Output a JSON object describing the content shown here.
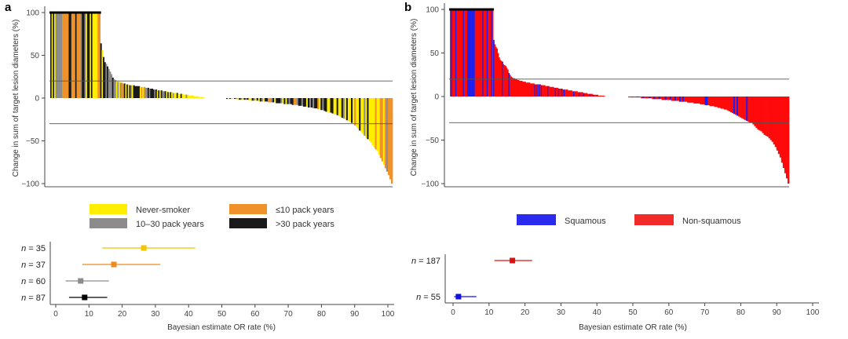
{
  "figure": {
    "panels": [
      "a",
      "b"
    ]
  },
  "chart_data": [
    {
      "id": "a-waterfall",
      "panel": "a",
      "type": "bar",
      "subtype": "waterfall",
      "title": "",
      "xlabel": "",
      "ylabel": "Change in sum of target lesion diameters (%)",
      "ylim": [
        -100,
        100
      ],
      "yticks": [
        100,
        50,
        0,
        -50,
        -100
      ],
      "reference_lines": [
        20,
        -30
      ],
      "capped_at": 100,
      "legend": [
        {
          "key": "never",
          "label": "Never-smoker",
          "color": "#ffee00"
        },
        {
          "key": "le10",
          "label": "≤10 pack years",
          "color": "#f0922a"
        },
        {
          "key": "mid",
          "label": "10–30 pack years",
          "color": "#8c8c8c"
        },
        {
          "key": "gt30",
          "label": ">30 pack years",
          "color": "#1a1a1a"
        }
      ],
      "legend_placement": "bottom",
      "colors": {
        "never": "#ffee00",
        "le10": "#f0922a",
        "mid": "#8c8c8c",
        "gt30": "#1a1a1a",
        "capped_bar": "#c98a4a"
      },
      "positive_bars": {
        "values": [
          100,
          100,
          100,
          100,
          100,
          100,
          100,
          100,
          100,
          100,
          100,
          100,
          100,
          100,
          100,
          100,
          100,
          100,
          100,
          100,
          100,
          100,
          100,
          100,
          100,
          100,
          100,
          100,
          100,
          100,
          100,
          100,
          100,
          100,
          100,
          100,
          100,
          100,
          64,
          56,
          48,
          42,
          40,
          37,
          34,
          31,
          28,
          24,
          22,
          21,
          20,
          19,
          19,
          18,
          18,
          17,
          17,
          16,
          16,
          16,
          15,
          15,
          15,
          15,
          14,
          14,
          14,
          14,
          13,
          13,
          13,
          13,
          12,
          12,
          12,
          11,
          11,
          11,
          10,
          10,
          10,
          9,
          9,
          9,
          9,
          8,
          8,
          8,
          8,
          7,
          7,
          7,
          7,
          6,
          6,
          6,
          6,
          5,
          5,
          5,
          5,
          4,
          4,
          4,
          4,
          3,
          3,
          3,
          3,
          2,
          2,
          2,
          2,
          1,
          1,
          1,
          1
        ],
        "groups": [
          "gt30",
          "never",
          "gt30",
          "never",
          "mid",
          "mid",
          "mid",
          "mid",
          "mid",
          "le10",
          "le10",
          "le10",
          "le10",
          "le10",
          "gt30",
          "gt30",
          "le10",
          "le10",
          "le10",
          "gt30",
          "le10",
          "le10",
          "le10",
          "mid",
          "gt30",
          "gt30",
          "mid",
          "never",
          "gt30",
          "gt30",
          "never",
          "gt30",
          "never",
          "never",
          "never",
          "never",
          "le10",
          "le10",
          "gt30",
          "never",
          "gt30",
          "gt30",
          "mid",
          "gt30",
          "mid",
          "mid",
          "mid",
          "gt30",
          "mid",
          "mid",
          "never",
          "mid",
          "never",
          "mid",
          "le10",
          "le10",
          "gt30",
          "never",
          "gt30",
          "never",
          "gt30",
          "mid",
          "never",
          "gt30",
          "gt30",
          "gt30",
          "gt30",
          "gt30",
          "never",
          "le10",
          "never",
          "le10",
          "mid",
          "mid",
          "gt30",
          "mid",
          "gt30",
          "gt30",
          "gt30",
          "mid",
          "gt30",
          "never",
          "gt30",
          "never",
          "gt30",
          "mid",
          "mid",
          "gt30",
          "never",
          "gt30",
          "never",
          "gt30",
          "never",
          "mid",
          "never",
          "never",
          "gt30",
          "never",
          "never",
          "gt30",
          "never",
          "never",
          "never",
          "mid",
          "never",
          "never",
          "never",
          "never",
          "never",
          "never",
          "never",
          "never",
          "never",
          "never",
          "never",
          "never",
          "never"
        ]
      },
      "negative_bars": {
        "values": [
          -1,
          -1,
          -1,
          -1,
          -1,
          -1,
          -1,
          -2,
          -2,
          -2,
          -2,
          -2,
          -2,
          -2,
          -3,
          -3,
          -3,
          -3,
          -3,
          -3,
          -4,
          -4,
          -4,
          -4,
          -4,
          -4,
          -5,
          -5,
          -5,
          -5,
          -5,
          -6,
          -6,
          -6,
          -6,
          -6,
          -7,
          -7,
          -7,
          -7,
          -7,
          -8,
          -8,
          -8,
          -8,
          -9,
          -9,
          -9,
          -10,
          -10,
          -10,
          -11,
          -11,
          -11,
          -12,
          -12,
          -12,
          -13,
          -13,
          -14,
          -14,
          -15,
          -16,
          -16,
          -17,
          -17,
          -18,
          -19,
          -19,
          -20,
          -21,
          -22,
          -23,
          -24,
          -25,
          -26,
          -27,
          -28,
          -29,
          -30,
          -32,
          -34,
          -36,
          -38,
          -40,
          -42,
          -44,
          -46,
          -48,
          -50,
          -52,
          -55,
          -58,
          -60,
          -62,
          -66,
          -70,
          -74,
          -78,
          -82,
          -86,
          -90,
          -95,
          -100
        ],
        "groups": [
          "gt30",
          "never",
          "gt30",
          "never",
          "never",
          "gt30",
          "mid",
          "never",
          "gt30",
          "mid",
          "never",
          "gt30",
          "mid",
          "gt30",
          "never",
          "never",
          "gt30",
          "mid",
          "never",
          "gt30",
          "never",
          "gt30",
          "mid",
          "never",
          "gt30",
          "gt30",
          "le10",
          "le10",
          "mid",
          "gt30",
          "never",
          "gt30",
          "gt30",
          "gt30",
          "mid",
          "never",
          "gt30",
          "never",
          "gt30",
          "mid",
          "gt30",
          "gt30",
          "le10",
          "le10",
          "mid",
          "gt30",
          "gt30",
          "mid",
          "gt30",
          "gt30",
          "never",
          "gt30",
          "mid",
          "gt30",
          "mid",
          "gt30",
          "gt30",
          "le10",
          "never",
          "gt30",
          "mid",
          "gt30",
          "gt30",
          "never",
          "never",
          "gt30",
          "gt30",
          "never",
          "never",
          "gt30",
          "never",
          "never",
          "gt30",
          "mid",
          "never",
          "gt30",
          "never",
          "never",
          "gt30",
          "never",
          "le10",
          "never",
          "never",
          "gt30",
          "never",
          "never",
          "mid",
          "never",
          "gt30",
          "never",
          "never",
          "never",
          "never",
          "le10",
          "never",
          "never",
          "le10",
          "le10",
          "never",
          "le10",
          "mid",
          "le10",
          "le10",
          "le10"
        ]
      }
    },
    {
      "id": "a-forest",
      "panel": "a",
      "type": "scatter",
      "subtype": "forest",
      "xlabel": "Bayesian estimate OR rate (%)",
      "ylabel": "",
      "xlim": [
        0,
        100
      ],
      "xticks": [
        0,
        10,
        20,
        30,
        40,
        50,
        60,
        70,
        80,
        90,
        100
      ],
      "rows": [
        {
          "label_prefix": "n",
          "label_value": " = 35",
          "estimate": 26.5,
          "lower": 14,
          "upper": 42,
          "color": "#f5c400"
        },
        {
          "label_prefix": "n",
          "label_value": " = 37",
          "estimate": 17.5,
          "lower": 8,
          "upper": 31.5,
          "color": "#f08a1c"
        },
        {
          "label_prefix": "n",
          "label_value": " = 60",
          "estimate": 7.5,
          "lower": 3,
          "upper": 16,
          "color": "#8c8c8c"
        },
        {
          "label_prefix": "n",
          "label_value": " = 87",
          "estimate": 8.7,
          "lower": 4,
          "upper": 15.5,
          "color": "#000000"
        }
      ]
    },
    {
      "id": "b-waterfall",
      "panel": "b",
      "type": "bar",
      "subtype": "waterfall",
      "title": "",
      "xlabel": "",
      "ylabel": "Change in sum of target lesion diameters (%)",
      "ylim": [
        -100,
        100
      ],
      "yticks": [
        100,
        50,
        0,
        -50,
        -100
      ],
      "reference_lines": [
        20,
        -30
      ],
      "capped_at": 100,
      "legend": [
        {
          "key": "sq",
          "label": "Squamous",
          "color": "#2b2bf0"
        },
        {
          "key": "nsq",
          "label": "Non-squamous",
          "color": "#f22a2a"
        }
      ],
      "legend_placement": "bottom",
      "colors": {
        "sq": "#2020ee",
        "nsq": "#ff0a0a"
      },
      "positive_bars": {
        "values": [
          100,
          100,
          100,
          100,
          100,
          100,
          100,
          100,
          100,
          100,
          100,
          100,
          100,
          100,
          100,
          100,
          100,
          100,
          100,
          100,
          100,
          100,
          100,
          100,
          100,
          100,
          100,
          100,
          100,
          100,
          100,
          100,
          100,
          100,
          100,
          100,
          100,
          100,
          100,
          100,
          65,
          60,
          57,
          55,
          50,
          45,
          42,
          41,
          40,
          37,
          36,
          35,
          33,
          31,
          27,
          25,
          23,
          22,
          21,
          21,
          20,
          20,
          19,
          19,
          18,
          18,
          18,
          17,
          17,
          17,
          16,
          16,
          16,
          16,
          15,
          15,
          15,
          15,
          14,
          14,
          14,
          14,
          14,
          14,
          13,
          13,
          13,
          13,
          12,
          12,
          12,
          12,
          11,
          11,
          11,
          11,
          10,
          10,
          10,
          10,
          9,
          9,
          9,
          9,
          8,
          8,
          8,
          8,
          8,
          7,
          7,
          7,
          7,
          6,
          6,
          6,
          6,
          6,
          5,
          5,
          5,
          5,
          5,
          4,
          4,
          4,
          4,
          3,
          3,
          3,
          3,
          3,
          2,
          2,
          2,
          2,
          2,
          1,
          1,
          1,
          1,
          1,
          1
        ],
        "groups": [
          "nsq",
          "sq",
          "nsq",
          "nsq",
          "nsq",
          "sq",
          "nsq",
          "nsq",
          "nsq",
          "nsq",
          "nsq",
          "nsq",
          "sq",
          "nsq",
          "nsq",
          "nsq",
          "sq",
          "sq",
          "sq",
          "sq",
          "sq",
          "sq",
          "sq",
          "nsq",
          "nsq",
          "nsq",
          "nsq",
          "nsq",
          "nsq",
          "nsq",
          "sq",
          "nsq",
          "nsq",
          "nsq",
          "sq",
          "nsq",
          "nsq",
          "nsq",
          "sq",
          "nsq",
          "sq",
          "nsq",
          "nsq",
          "nsq",
          "nsq",
          "nsq",
          "nsq",
          "nsq",
          "sq",
          "nsq",
          "nsq",
          "nsq",
          "nsq",
          "nsq",
          "sq",
          "nsq",
          "nsq",
          "nsq",
          "nsq",
          "nsq",
          "nsq",
          "nsq",
          "nsq",
          "nsq",
          "nsq",
          "nsq",
          "nsq",
          "nsq",
          "nsq",
          "nsq",
          "nsq",
          "nsq",
          "nsq",
          "nsq",
          "nsq",
          "nsq",
          "nsq",
          "nsq",
          "sq",
          "nsq",
          "sq",
          "nsq",
          "sq",
          "nsq",
          "sq",
          "nsq",
          "nsq",
          "nsq",
          "nsq",
          "nsq",
          "sq",
          "nsq",
          "nsq",
          "nsq",
          "nsq",
          "nsq",
          "nsq",
          "sq",
          "nsq",
          "nsq",
          "sq",
          "nsq",
          "nsq",
          "sq",
          "nsq",
          "sq",
          "nsq",
          "nsq",
          "nsq",
          "nsq",
          "nsq",
          "nsq",
          "nsq",
          "nsq",
          "sq",
          "nsq",
          "nsq",
          "nsq",
          "nsq",
          "sq",
          "nsq",
          "nsq",
          "nsq",
          "sq",
          "nsq",
          "nsq",
          "nsq",
          "nsq",
          "nsq",
          "sq",
          "nsq",
          "nsq",
          "sq",
          "nsq",
          "nsq",
          "nsq",
          "nsq",
          "nsq",
          "nsq",
          "nsq",
          "nsq",
          "nsq",
          "nsq"
        ]
      },
      "negative_bars": {
        "values": [
          -1,
          -1,
          -1,
          -1,
          -1,
          -1,
          -1,
          -1,
          -2,
          -2,
          -2,
          -2,
          -2,
          -2,
          -2,
          -3,
          -3,
          -3,
          -3,
          -3,
          -3,
          -4,
          -4,
          -4,
          -4,
          -4,
          -4,
          -5,
          -5,
          -5,
          -5,
          -5,
          -6,
          -6,
          -6,
          -6,
          -6,
          -7,
          -7,
          -7,
          -7,
          -8,
          -8,
          -8,
          -8,
          -9,
          -9,
          -9,
          -10,
          -10,
          -10,
          -11,
          -11,
          -11,
          -12,
          -12,
          -13,
          -13,
          -14,
          -14,
          -15,
          -15,
          -16,
          -17,
          -18,
          -19,
          -20,
          -21,
          -22,
          -23,
          -24,
          -25,
          -26,
          -27,
          -28,
          -29,
          -30,
          -30,
          -32,
          -34,
          -36,
          -38,
          -39,
          -40,
          -42,
          -44,
          -45,
          -46,
          -48,
          -50,
          -52,
          -55,
          -58,
          -62,
          -66,
          -70,
          -76,
          -82,
          -88,
          -94,
          -100
        ],
        "groups": [
          "nsq",
          "nsq",
          "sq",
          "nsq",
          "nsq",
          "sq",
          "sq",
          "nsq",
          "nsq",
          "sq",
          "nsq",
          "nsq",
          "nsq",
          "sq",
          "nsq",
          "nsq",
          "sq",
          "nsq",
          "nsq",
          "sq",
          "nsq",
          "nsq",
          "nsq",
          "sq",
          "nsq",
          "nsq",
          "sq",
          "nsq",
          "nsq",
          "sq",
          "nsq",
          "nsq",
          "sq",
          "nsq",
          "sq",
          "nsq",
          "nsq",
          "nsq",
          "nsq",
          "nsq",
          "nsq",
          "nsq",
          "nsq",
          "nsq",
          "nsq",
          "nsq",
          "nsq",
          "nsq",
          "sq",
          "sq",
          "nsq",
          "nsq",
          "nsq",
          "nsq",
          "nsq",
          "nsq",
          "nsq",
          "nsq",
          "nsq",
          "nsq",
          "nsq",
          "nsq",
          "nsq",
          "nsq",
          "nsq",
          "nsq",
          "sq",
          "nsq",
          "sq",
          "nsq",
          "nsq",
          "nsq",
          "nsq",
          "nsq",
          "sq",
          "nsq",
          "nsq",
          "nsq",
          "nsq",
          "nsq",
          "nsq",
          "nsq",
          "nsq",
          "nsq",
          "nsq",
          "nsq",
          "nsq",
          "nsq",
          "nsq",
          "nsq",
          "nsq",
          "nsq",
          "nsq",
          "nsq",
          "nsq",
          "nsq",
          "nsq",
          "nsq",
          "nsq",
          "nsq",
          "nsq"
        ]
      }
    },
    {
      "id": "b-forest",
      "panel": "b",
      "type": "scatter",
      "subtype": "forest",
      "xlabel": "Bayesian estimate OR rate (%)",
      "ylabel": "",
      "xlim": [
        0,
        100
      ],
      "xticks": [
        0,
        10,
        20,
        30,
        40,
        50,
        60,
        70,
        80,
        90,
        100
      ],
      "rows": [
        {
          "label_prefix": "n",
          "label_value": " = 187",
          "estimate": 16.5,
          "lower": 11.5,
          "upper": 22,
          "color": "#e01010"
        },
        {
          "label_prefix": "n",
          "label_value": " = 55",
          "estimate": 1.5,
          "lower": 0.3,
          "upper": 6.5,
          "color": "#1010e0"
        }
      ]
    }
  ]
}
